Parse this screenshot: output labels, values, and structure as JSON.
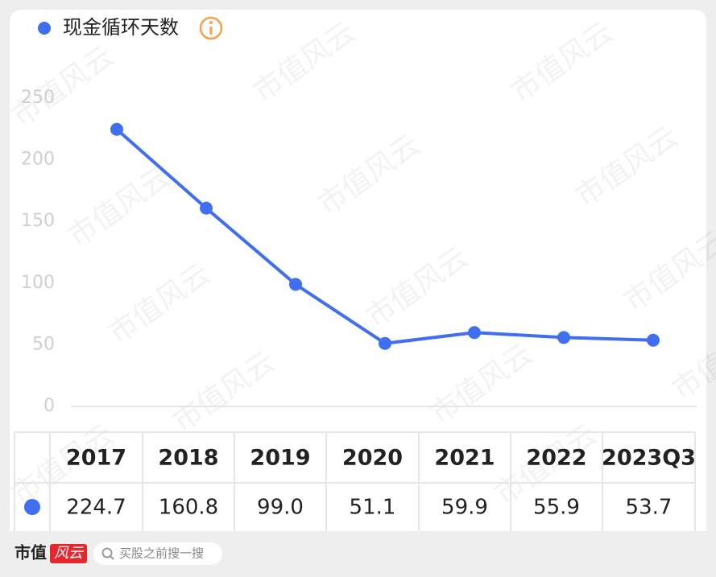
{
  "chart_data": {
    "type": "line",
    "categories": [
      "2017",
      "2018",
      "2019",
      "2020",
      "2021",
      "2022",
      "2023Q3"
    ],
    "series": [
      {
        "name": "现金循环天数",
        "color": "#3f6ff0",
        "values": [
          224.7,
          160.8,
          99.0,
          51.1,
          59.9,
          55.9,
          53.7
        ],
        "value_labels": [
          "224.7",
          "160.8",
          "99.0",
          "51.1",
          "59.9",
          "55.9",
          "53.7"
        ]
      }
    ],
    "ylim": [
      0,
      250
    ],
    "yticks": [
      0,
      50,
      100,
      150,
      200,
      250
    ]
  },
  "watermark": "市值风云",
  "footer": {
    "logo_left": "市值",
    "logo_right": "风云",
    "search_placeholder": "买股之前搜一搜"
  }
}
